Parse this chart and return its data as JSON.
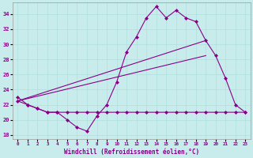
{
  "xlabel": "Windchill (Refroidissement éolien,°C)",
  "background_color": "#c8ecec",
  "grid_color": "#b0dede",
  "line_color": "#880088",
  "ylim": [
    17.5,
    35.5
  ],
  "xlim": [
    -0.5,
    23.5
  ],
  "yticks": [
    18,
    20,
    22,
    24,
    26,
    28,
    30,
    32,
    34
  ],
  "xticks": [
    0,
    1,
    2,
    3,
    4,
    5,
    6,
    7,
    8,
    9,
    10,
    11,
    12,
    13,
    14,
    15,
    16,
    17,
    18,
    19,
    20,
    21,
    22,
    23
  ],
  "xtick_labels": [
    "0",
    "1",
    "2",
    "3",
    "4",
    "5",
    "6",
    "7",
    "8",
    "9",
    "10",
    "11",
    "12",
    "13",
    "14",
    "15",
    "16",
    "17",
    "18",
    "19",
    "20",
    "21",
    "22",
    "23"
  ],
  "series1": {
    "x": [
      0,
      1,
      2,
      3,
      4,
      5,
      6,
      7,
      8,
      9,
      10,
      11,
      12,
      13,
      14,
      15,
      16,
      17,
      18,
      19,
      20,
      21,
      22,
      23
    ],
    "y": [
      23.0,
      22.0,
      21.5,
      21.0,
      21.0,
      20.0,
      19.0,
      18.5,
      20.5,
      22.0,
      25.0,
      29.0,
      31.0,
      33.5,
      35.0,
      33.5,
      34.5,
      33.5,
      33.0,
      30.5,
      28.5,
      25.5,
      22.0,
      21.0
    ]
  },
  "series2": {
    "x": [
      0,
      1,
      2,
      3,
      4,
      5,
      6,
      7,
      8,
      9,
      10,
      11,
      12,
      13,
      14,
      15,
      16,
      17,
      18,
      19,
      20,
      21,
      22,
      23
    ],
    "y": [
      22.5,
      22.0,
      21.5,
      21.0,
      21.0,
      21.0,
      21.0,
      21.0,
      21.0,
      21.0,
      21.0,
      21.0,
      21.0,
      21.0,
      21.0,
      21.0,
      21.0,
      21.0,
      21.0,
      21.0,
      21.0,
      21.0,
      21.0,
      21.0
    ]
  },
  "series3_x": [
    0,
    19
  ],
  "series3_y": [
    22.5,
    28.5
  ],
  "series4_x": [
    0,
    19
  ],
  "series4_y": [
    22.5,
    30.5
  ]
}
